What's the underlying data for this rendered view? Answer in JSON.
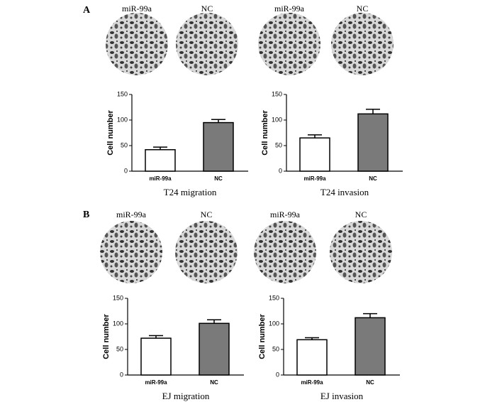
{
  "panels": [
    {
      "label": "A",
      "images": [
        "miR-99a",
        "NC",
        "miR-99a",
        "NC"
      ]
    },
    {
      "label": "B",
      "images": [
        "miR-99a",
        "NC",
        "miR-99a",
        "NC"
      ]
    }
  ],
  "chart_data": [
    {
      "type": "bar",
      "title": "T24 migration",
      "ylabel": "Cell number",
      "categories": [
        "miR-99a",
        "NC"
      ],
      "values": [
        42,
        95
      ],
      "errors": [
        5,
        6
      ],
      "colors": [
        "#ffffff",
        "#7a7a7a"
      ],
      "ylim": [
        0,
        150
      ],
      "yticks": [
        0,
        50,
        100,
        150
      ]
    },
    {
      "type": "bar",
      "title": "T24 invasion",
      "ylabel": "Cell number",
      "categories": [
        "miR-99a",
        "NC"
      ],
      "values": [
        65,
        112
      ],
      "errors": [
        6,
        9
      ],
      "colors": [
        "#ffffff",
        "#7a7a7a"
      ],
      "ylim": [
        0,
        150
      ],
      "yticks": [
        0,
        50,
        100,
        150
      ]
    },
    {
      "type": "bar",
      "title": "EJ migration",
      "ylabel": "Cell number",
      "categories": [
        "miR-99a",
        "NC"
      ],
      "values": [
        72,
        101
      ],
      "errors": [
        5,
        7
      ],
      "colors": [
        "#ffffff",
        "#7a7a7a"
      ],
      "ylim": [
        0,
        150
      ],
      "yticks": [
        0,
        50,
        100,
        150
      ]
    },
    {
      "type": "bar",
      "title": "EJ invasion",
      "ylabel": "Cell number",
      "categories": [
        "miR-99a",
        "NC"
      ],
      "values": [
        69,
        112
      ],
      "errors": [
        4,
        8
      ],
      "colors": [
        "#ffffff",
        "#7a7a7a"
      ],
      "ylim": [
        0,
        150
      ],
      "yticks": [
        0,
        50,
        100,
        150
      ]
    }
  ]
}
